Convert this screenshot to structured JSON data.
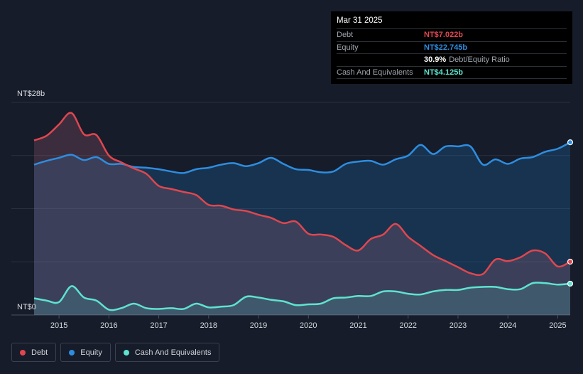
{
  "tooltip": {
    "date": "Mar 31 2025",
    "rows": [
      {
        "label": "Debt",
        "value": "NT$7.022b",
        "color": "#e0464f"
      },
      {
        "label": "Equity",
        "value": "NT$22.745b",
        "color": "#2e8de0"
      }
    ],
    "ratio_value": "30.9%",
    "ratio_label": "Debt/Equity Ratio",
    "cash_label": "Cash And Equivalents",
    "cash_value": "NT$4.125b",
    "cash_color": "#5ee3cf"
  },
  "legend": [
    {
      "label": "Debt",
      "color": "#e0464f"
    },
    {
      "label": "Equity",
      "color": "#2e8de0"
    },
    {
      "label": "Cash And Equivalents",
      "color": "#5ee3cf"
    }
  ],
  "chart_data": {
    "type": "area",
    "title": "",
    "y_top_label": "NT$28b",
    "y_bottom_label": "NT$0",
    "ylim": [
      0,
      28
    ],
    "xlim": [
      2014.5,
      2025.25
    ],
    "x_ticks": [
      "2015",
      "2016",
      "2017",
      "2018",
      "2019",
      "2020",
      "2021",
      "2022",
      "2023",
      "2024",
      "2025"
    ],
    "series": [
      {
        "name": "Debt",
        "color": "#e0464f",
        "points": [
          [
            2014.5,
            23
          ],
          [
            2014.75,
            23.6
          ],
          [
            2015.0,
            25.1
          ],
          [
            2015.25,
            26.6
          ],
          [
            2015.5,
            23.8
          ],
          [
            2015.75,
            23.7
          ],
          [
            2016.0,
            21.0
          ],
          [
            2016.25,
            20.1
          ],
          [
            2016.5,
            19.3
          ],
          [
            2016.75,
            18.6
          ],
          [
            2017.0,
            17.0
          ],
          [
            2017.25,
            16.6
          ],
          [
            2017.5,
            16.2
          ],
          [
            2017.75,
            15.8
          ],
          [
            2018.0,
            14.5
          ],
          [
            2018.25,
            14.4
          ],
          [
            2018.5,
            13.9
          ],
          [
            2018.75,
            13.7
          ],
          [
            2019.0,
            13.2
          ],
          [
            2019.25,
            12.8
          ],
          [
            2019.5,
            12.1
          ],
          [
            2019.75,
            12.3
          ],
          [
            2020.0,
            10.7
          ],
          [
            2020.25,
            10.6
          ],
          [
            2020.5,
            10.3
          ],
          [
            2020.75,
            9.2
          ],
          [
            2021.0,
            8.5
          ],
          [
            2021.25,
            10.0
          ],
          [
            2021.5,
            10.6
          ],
          [
            2021.75,
            12.0
          ],
          [
            2022.0,
            10.3
          ],
          [
            2022.25,
            9.1
          ],
          [
            2022.5,
            7.9
          ],
          [
            2022.75,
            7.1
          ],
          [
            2023.0,
            6.3
          ],
          [
            2023.25,
            5.5
          ],
          [
            2023.5,
            5.4
          ],
          [
            2023.75,
            7.3
          ],
          [
            2024.0,
            7.1
          ],
          [
            2024.25,
            7.6
          ],
          [
            2024.5,
            8.5
          ],
          [
            2024.75,
            8.1
          ],
          [
            2025.0,
            6.4
          ],
          [
            2025.25,
            7.022
          ]
        ]
      },
      {
        "name": "Equity",
        "color": "#2e8de0",
        "points": [
          [
            2014.5,
            19.8
          ],
          [
            2014.75,
            20.3
          ],
          [
            2015.0,
            20.7
          ],
          [
            2015.25,
            21.1
          ],
          [
            2015.5,
            20.4
          ],
          [
            2015.75,
            20.8
          ],
          [
            2016.0,
            19.9
          ],
          [
            2016.25,
            19.9
          ],
          [
            2016.5,
            19.5
          ],
          [
            2016.75,
            19.4
          ],
          [
            2017.0,
            19.2
          ],
          [
            2017.25,
            18.9
          ],
          [
            2017.5,
            18.7
          ],
          [
            2017.75,
            19.2
          ],
          [
            2018.0,
            19.4
          ],
          [
            2018.25,
            19.8
          ],
          [
            2018.5,
            20.0
          ],
          [
            2018.75,
            19.6
          ],
          [
            2019.0,
            20.0
          ],
          [
            2019.25,
            20.7
          ],
          [
            2019.5,
            19.9
          ],
          [
            2019.75,
            19.2
          ],
          [
            2020.0,
            19.1
          ],
          [
            2020.25,
            18.8
          ],
          [
            2020.5,
            18.9
          ],
          [
            2020.75,
            19.9
          ],
          [
            2021.0,
            20.2
          ],
          [
            2021.25,
            20.3
          ],
          [
            2021.5,
            19.8
          ],
          [
            2021.75,
            20.5
          ],
          [
            2022.0,
            21.0
          ],
          [
            2022.25,
            22.4
          ],
          [
            2022.5,
            21.2
          ],
          [
            2022.75,
            22.2
          ],
          [
            2023.0,
            22.2
          ],
          [
            2023.25,
            22.2
          ],
          [
            2023.5,
            19.8
          ],
          [
            2023.75,
            20.5
          ],
          [
            2024.0,
            19.9
          ],
          [
            2024.25,
            20.6
          ],
          [
            2024.5,
            20.8
          ],
          [
            2024.75,
            21.5
          ],
          [
            2025.0,
            21.9
          ],
          [
            2025.25,
            22.745
          ]
        ]
      },
      {
        "name": "Cash And Equivalents",
        "color": "#5ee3cf",
        "points": [
          [
            2014.5,
            2.2
          ],
          [
            2014.75,
            1.9
          ],
          [
            2015.0,
            1.7
          ],
          [
            2015.25,
            3.8
          ],
          [
            2015.5,
            2.3
          ],
          [
            2015.75,
            1.9
          ],
          [
            2016.0,
            0.7
          ],
          [
            2016.25,
            0.9
          ],
          [
            2016.5,
            1.5
          ],
          [
            2016.75,
            0.9
          ],
          [
            2017.0,
            0.8
          ],
          [
            2017.25,
            0.9
          ],
          [
            2017.5,
            0.8
          ],
          [
            2017.75,
            1.5
          ],
          [
            2018.0,
            1.0
          ],
          [
            2018.25,
            1.1
          ],
          [
            2018.5,
            1.3
          ],
          [
            2018.75,
            2.4
          ],
          [
            2019.0,
            2.3
          ],
          [
            2019.25,
            2.0
          ],
          [
            2019.5,
            1.8
          ],
          [
            2019.75,
            1.3
          ],
          [
            2020.0,
            1.4
          ],
          [
            2020.25,
            1.5
          ],
          [
            2020.5,
            2.2
          ],
          [
            2020.75,
            2.3
          ],
          [
            2021.0,
            2.5
          ],
          [
            2021.25,
            2.5
          ],
          [
            2021.5,
            3.1
          ],
          [
            2021.75,
            3.1
          ],
          [
            2022.0,
            2.8
          ],
          [
            2022.25,
            2.7
          ],
          [
            2022.5,
            3.1
          ],
          [
            2022.75,
            3.3
          ],
          [
            2023.0,
            3.3
          ],
          [
            2023.25,
            3.6
          ],
          [
            2023.5,
            3.7
          ],
          [
            2023.75,
            3.7
          ],
          [
            2024.0,
            3.4
          ],
          [
            2024.25,
            3.4
          ],
          [
            2024.5,
            4.2
          ],
          [
            2024.75,
            4.2
          ],
          [
            2025.0,
            4.0
          ],
          [
            2025.25,
            4.125
          ]
        ]
      }
    ]
  }
}
